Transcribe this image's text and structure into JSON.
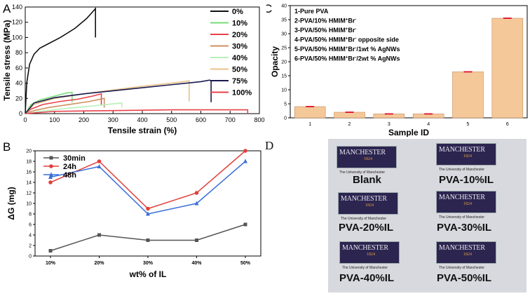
{
  "panelA": {
    "letter": "A",
    "chart_data": {
      "type": "line",
      "xlabel": "Tensile strain (%)",
      "ylabel": "Tensile stress (MPa)",
      "xlim": [
        0,
        800
      ],
      "ylim": [
        0,
        140
      ],
      "xticks": [
        0,
        100,
        200,
        300,
        400,
        500,
        600,
        700,
        800
      ],
      "yticks": [
        0,
        20,
        40,
        60,
        80,
        100,
        120,
        140
      ],
      "legend": "top-right",
      "series": [
        {
          "name": "0%",
          "color": "#111111",
          "x": [
            0,
            5,
            15,
            30,
            50,
            80,
            120,
            170,
            210,
            240,
            240
          ],
          "y": [
            0,
            40,
            65,
            78,
            86,
            92,
            100,
            112,
            125,
            138,
            100
          ]
        },
        {
          "name": "10%",
          "color": "#77dd77",
          "x": [
            0,
            20,
            50,
            100,
            140,
            160,
            160
          ],
          "y": [
            0,
            12,
            18,
            23,
            27,
            28,
            15
          ]
        },
        {
          "name": "20%",
          "color": "#e8414b",
          "x": [
            0,
            20,
            60,
            120,
            180,
            230,
            260,
            260
          ],
          "y": [
            0,
            6,
            12,
            16,
            19,
            23,
            26,
            12
          ]
        },
        {
          "name": "30%",
          "color": "#d09060",
          "x": [
            0,
            30,
            80,
            150,
            220,
            270,
            270
          ],
          "y": [
            0,
            4,
            8,
            12,
            16,
            20,
            8
          ]
        },
        {
          "name": "40%",
          "color": "#b8f0b8",
          "x": [
            0,
            50,
            120,
            200,
            280,
            330,
            330
          ],
          "y": [
            0,
            3,
            6,
            9,
            12,
            14,
            8
          ]
        },
        {
          "name": "50%",
          "color": "#e8c28a",
          "x": [
            0,
            30,
            100,
            200,
            300,
            400,
            500,
            560,
            560
          ],
          "y": [
            0,
            12,
            20,
            26,
            31,
            36,
            40,
            43,
            16
          ]
        },
        {
          "name": "75%",
          "color": "#1a1a50",
          "x": [
            0,
            30,
            100,
            200,
            300,
            400,
            500,
            600,
            630,
            635,
            635
          ],
          "y": [
            0,
            14,
            21,
            26,
            30,
            34,
            38,
            42,
            44,
            43,
            15
          ]
        },
        {
          "name": "100%",
          "color": "#e8414b",
          "x": [
            0,
            100,
            300,
            500,
            700,
            760,
            760
          ],
          "y": [
            0,
            3,
            4,
            5,
            5,
            5,
            0
          ]
        }
      ]
    }
  },
  "panelB": {
    "letter": "B",
    "chart_data": {
      "type": "line",
      "xlabel": "wt% of IL",
      "ylabel": "ΔG (mg)",
      "categories": [
        "10%",
        "20%",
        "30%",
        "40%",
        "50%"
      ],
      "ylim": [
        0,
        20
      ],
      "yticks": [
        0,
        2,
        4,
        6,
        8,
        10,
        12,
        14,
        16,
        18,
        20
      ],
      "legend": "top-left",
      "series": [
        {
          "name": "30min",
          "color": "#555555",
          "marker": "square",
          "values": [
            1,
            4,
            3,
            3,
            6
          ]
        },
        {
          "name": "24h",
          "color": "#e0403a",
          "marker": "circle",
          "values": [
            14,
            18,
            9,
            12,
            20
          ]
        },
        {
          "name": "48h",
          "color": "#3a6fd8",
          "marker": "triangle",
          "values": [
            15,
            17,
            8,
            10,
            18
          ]
        }
      ]
    }
  },
  "panelC": {
    "letter": "C",
    "chart_data": {
      "type": "bar",
      "xlabel": "Sample ID",
      "ylabel": "Opacity",
      "categories": [
        "1",
        "2",
        "3",
        "4",
        "5",
        "6"
      ],
      "values": [
        4.0,
        2.0,
        1.4,
        1.4,
        16.4,
        35.5
      ],
      "ylim": [
        0,
        40
      ],
      "yticks": [
        0,
        5,
        10,
        15,
        20,
        25,
        30,
        35,
        40
      ],
      "bar_color": "#f5c89a",
      "error_color": "#e0203a",
      "annotations": [
        {
          "text": "1-Pure PVA"
        },
        {
          "text": "2-PVA/10% HMIM",
          "sup": "+",
          "text2": "Br",
          "sup2": "-",
          "text3": ""
        },
        {
          "text": "3-PVA/50% HMIM",
          "sup": "+",
          "text2": "Br",
          "sup2": "-",
          "text3": ""
        },
        {
          "text": "4-PVA/50% HMIM",
          "sup": "+",
          "text2": "Br",
          "sup2": "-",
          "text3": " opposite side"
        },
        {
          "text": "5-PVA/50% HMIM",
          "sup": "+",
          "text2": "Br",
          "sup2": "-",
          "text3": "/1wt % AgNWs"
        },
        {
          "text": "6-PVA/50% HMIM",
          "sup": "+",
          "text2": "Br",
          "sup2": "-",
          "text3": "/2wt % AgNWs"
        }
      ]
    }
  },
  "panelD": {
    "letter": "D",
    "logo_text": "MANCHESTER",
    "logo_year": "1824",
    "university": "The University of Manchester",
    "samples": [
      "Blank",
      "PVA-10%IL",
      "PVA-20%IL",
      "PVA-30%IL",
      "PVA-40%IL",
      "PVA-50%IL"
    ]
  }
}
